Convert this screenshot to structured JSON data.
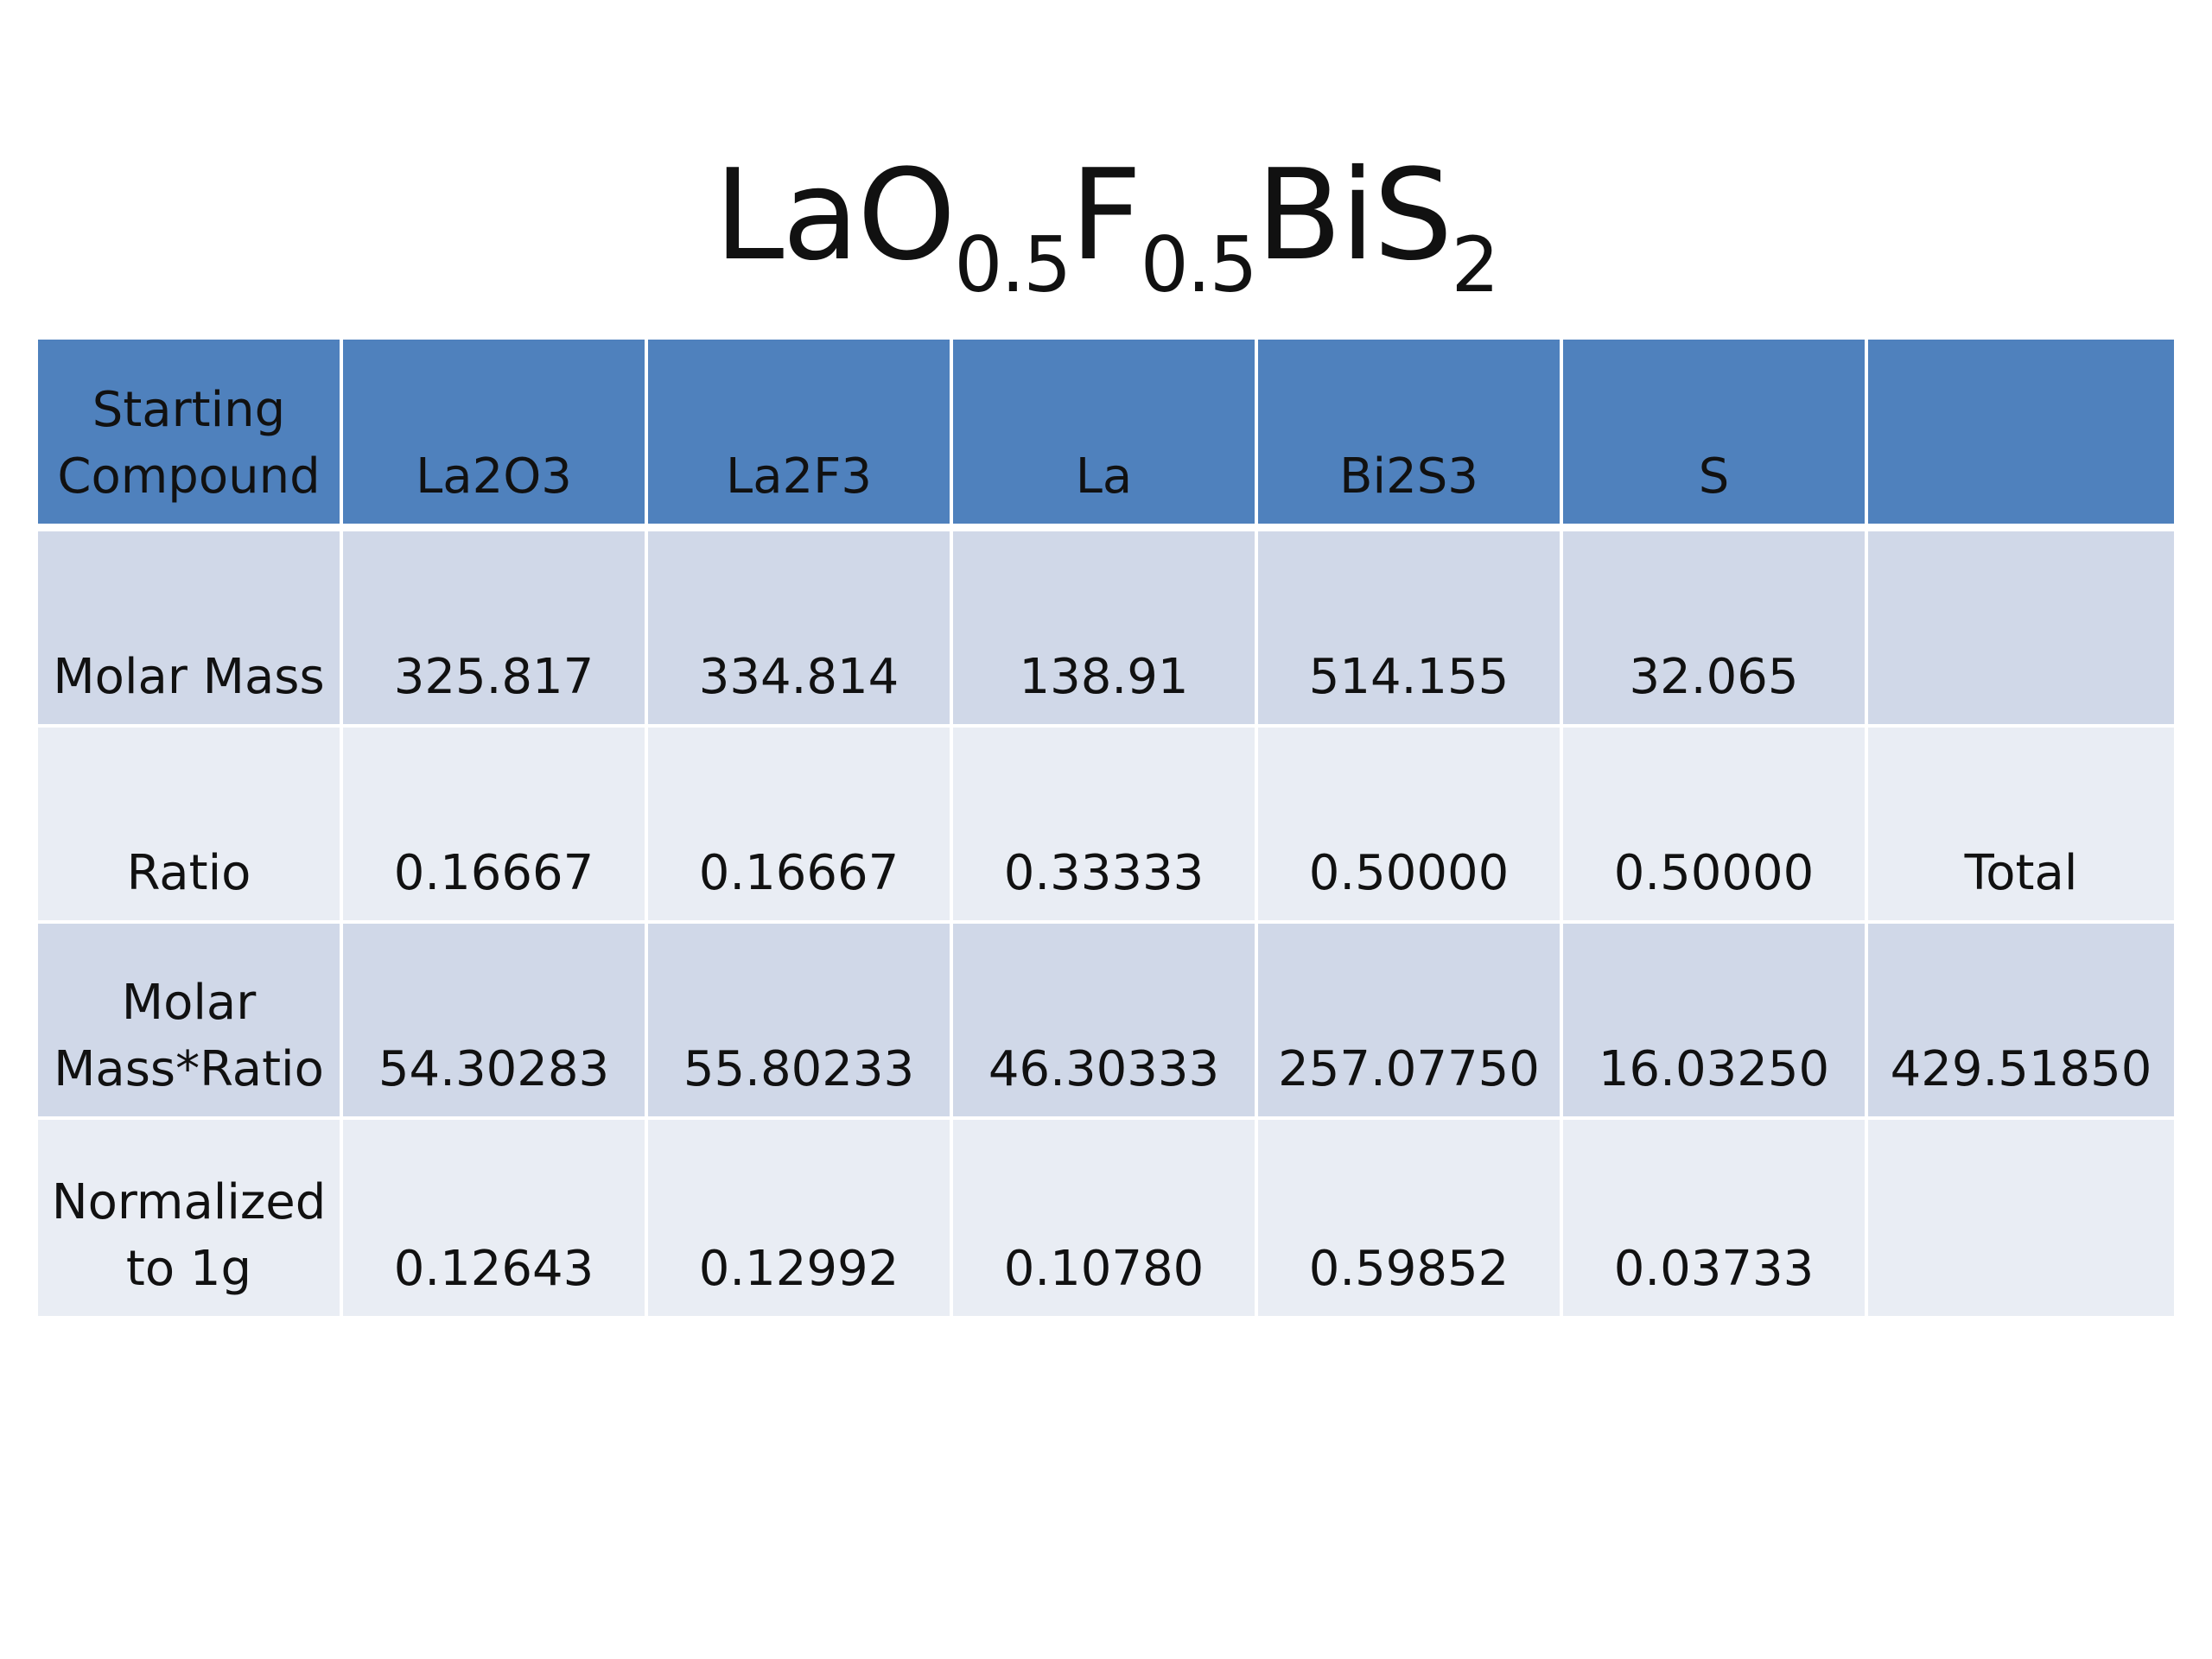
{
  "title": {
    "base1": "LaO",
    "sub1": "0.5",
    "base2": "F",
    "sub2": "0.5",
    "base3": "BiS",
    "sub3": "2"
  },
  "table": {
    "header": [
      "Starting Compound",
      "La2O3",
      "La2F3",
      "La",
      "Bi2S3",
      "S",
      ""
    ],
    "rows": [
      [
        "Molar Mass",
        "325.817",
        "334.814",
        "138.91",
        "514.155",
        "32.065",
        ""
      ],
      [
        "Ratio",
        "0.16667",
        "0.16667",
        "0.33333",
        "0.50000",
        "0.50000",
        "Total"
      ],
      [
        "Molar Mass*Ratio",
        "54.30283",
        "55.80233",
        "46.30333",
        "257.07750",
        "16.03250",
        "429.51850"
      ],
      [
        "Normalized to 1g",
        "0.12643",
        "0.12992",
        "0.10780",
        "0.59852",
        "0.03733",
        ""
      ]
    ]
  },
  "colors": {
    "header_fill": "#4f81bd",
    "row_dark_fill": "#d0d8e8",
    "row_light_fill": "#e9edf4"
  }
}
